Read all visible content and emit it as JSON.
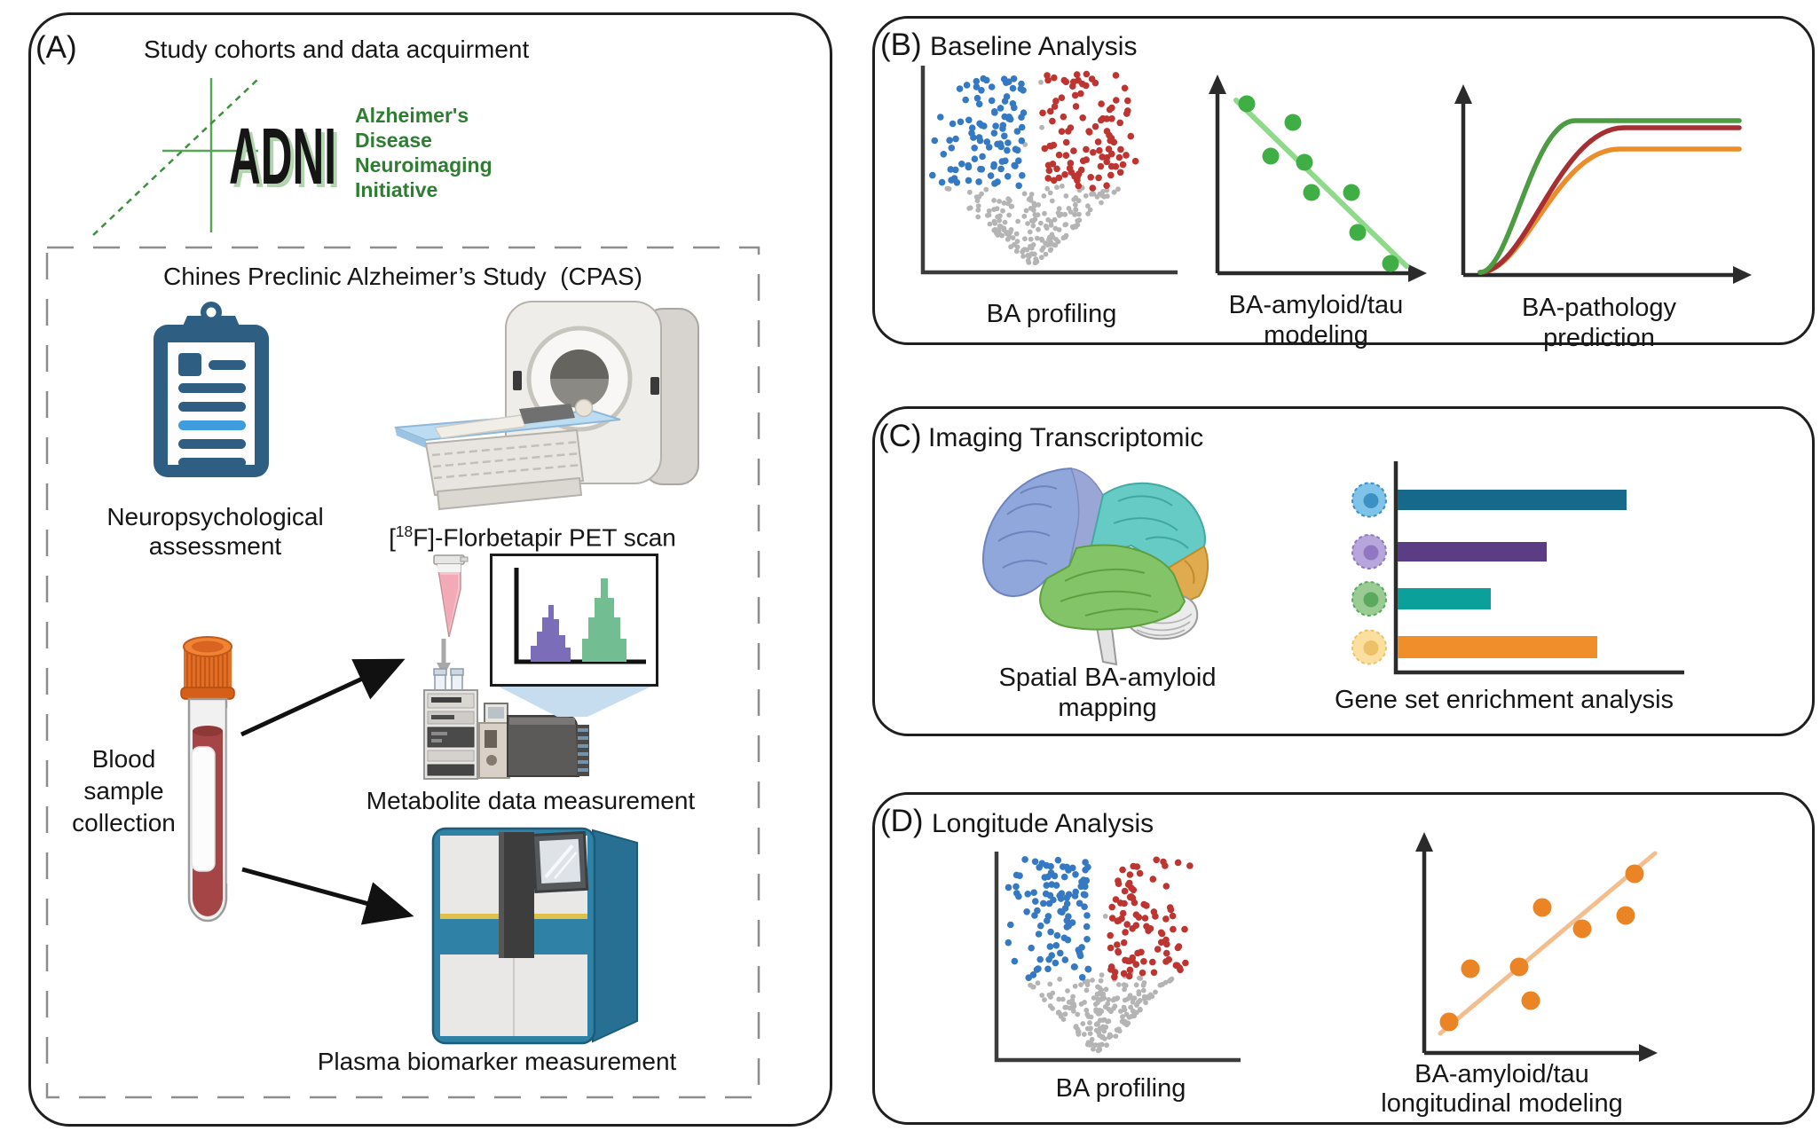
{
  "panel_a": {
    "letter": "(A)",
    "title": "Study cohorts and data acquirment",
    "adni_logo": {
      "wordmark": "ADNI",
      "tagline": [
        "Alzheimer's",
        "Disease",
        "Neuroimaging",
        "Initiative"
      ],
      "green": "#2f7d32"
    },
    "cpas_title": "Chines Preclinic Alzheimer’s Study  (CPAS)",
    "neuropsych_label": [
      "Neuropsychological",
      "assessment"
    ],
    "pet_label": {
      "open_bracket": "[",
      "isotope": "18",
      "rest": "F]-Florbetapir PET scan"
    },
    "blood_label": [
      "Blood",
      "sample",
      "collection"
    ],
    "metabolite_label": "Metabolite data measurement",
    "plasma_label": "Plasma biomarker measurement",
    "icon_names": [
      "adni-logo",
      "clipboard-icon",
      "pet-scanner-icon",
      "sample-tube-icon",
      "down-arrow-icon",
      "vials-icon",
      "hplc-icon",
      "mass-spectrometer-icon",
      "metabolite-histogram-icon",
      "blood-tube-icon",
      "plasma-analyzer-icon",
      "flow-arrow-icon"
    ]
  },
  "panel_b": {
    "letter": "(B)",
    "title": "Baseline Analysis",
    "volcano": {
      "label": "BA profiling",
      "type": "volcano-scatter",
      "seed": 13,
      "n": 400,
      "colors": {
        "up": "#bd3430",
        "down": "#3579c2",
        "ns": "#b4b4b4"
      }
    },
    "scatter": {
      "label": [
        "BA-amyloid/tau",
        "modeling"
      ],
      "type": "scatter-negative-trend",
      "dot_color": "#3fae44",
      "line_color": "#8fd98a",
      "line_width": 6,
      "dot_r": 9.5,
      "points": [
        [
          55,
          39
        ],
        [
          107,
          60
        ],
        [
          82,
          98
        ],
        [
          120,
          105
        ],
        [
          128,
          139
        ],
        [
          173,
          139
        ],
        [
          180,
          184
        ],
        [
          217,
          219
        ]
      ],
      "trend": [
        [
          43,
          35
        ],
        [
          235,
          222
        ]
      ]
    },
    "curves": {
      "label": [
        "BA-pathology",
        "prediction"
      ],
      "type": "saturation-curves",
      "series": [
        {
          "color": "#ec8d2b",
          "plateau": 83,
          "knee": 195
        },
        {
          "color": "#a52f32",
          "plateau": 59,
          "knee": 200
        },
        {
          "color": "#4d9b42",
          "plateau": 51,
          "knee": 145
        }
      ]
    }
  },
  "panel_c": {
    "letter": "(C)",
    "title": "Imaging Transcriptomic",
    "brain_label": [
      "Spatial BA-amyloid",
      "mapping"
    ],
    "brain_region_colors": {
      "frontal": "#8fa7da",
      "strip": "#9aa6d6",
      "parietal": "#66cbc4",
      "occipital": "#e0aa4e",
      "temporal": "#84c468",
      "cerebellum": "#ececec"
    },
    "gsea": {
      "label": "Gene set enrichment analysis",
      "type": "bar",
      "bars": [
        {
          "value": 258,
          "bar_color": "#17698c",
          "cell_fill": "#7fc4e8",
          "cell_core": "#3b90c4"
        },
        {
          "value": 168,
          "bar_color": "#5b3d86",
          "cell_fill": "#b7a6db",
          "cell_core": "#9176c2"
        },
        {
          "value": 105,
          "bar_color": "#0ba09a",
          "cell_fill": "#9acb93",
          "cell_core": "#5ba85f"
        },
        {
          "value": 225,
          "bar_color": "#ef8e2b",
          "cell_fill": "#fbdf9f",
          "cell_core": "#edc06a"
        }
      ]
    }
  },
  "panel_d": {
    "letter": "(D)",
    "title": "Longitude Analysis",
    "volcano": {
      "label": "BA profiling",
      "type": "volcano-scatter",
      "seed": 77,
      "n": 400,
      "colors": {
        "up": "#bd3430",
        "down": "#3579c2",
        "ns": "#b4b4b4"
      }
    },
    "scatter": {
      "label": [
        "BA-amyloid/tau",
        "longitudinal modeling"
      ],
      "type": "scatter-positive-trend",
      "dot_color": "#eb8425",
      "line_color": "#f4bd8d",
      "line_width": 5,
      "dot_r": 10.5,
      "points": [
        [
          43,
          222
        ],
        [
          67,
          162
        ],
        [
          122,
          160
        ],
        [
          135,
          198
        ],
        [
          148,
          93
        ],
        [
          193,
          117
        ],
        [
          242,
          102
        ],
        [
          252,
          55
        ]
      ],
      "trend": [
        [
          33,
          235
        ],
        [
          275,
          32
        ]
      ]
    }
  }
}
